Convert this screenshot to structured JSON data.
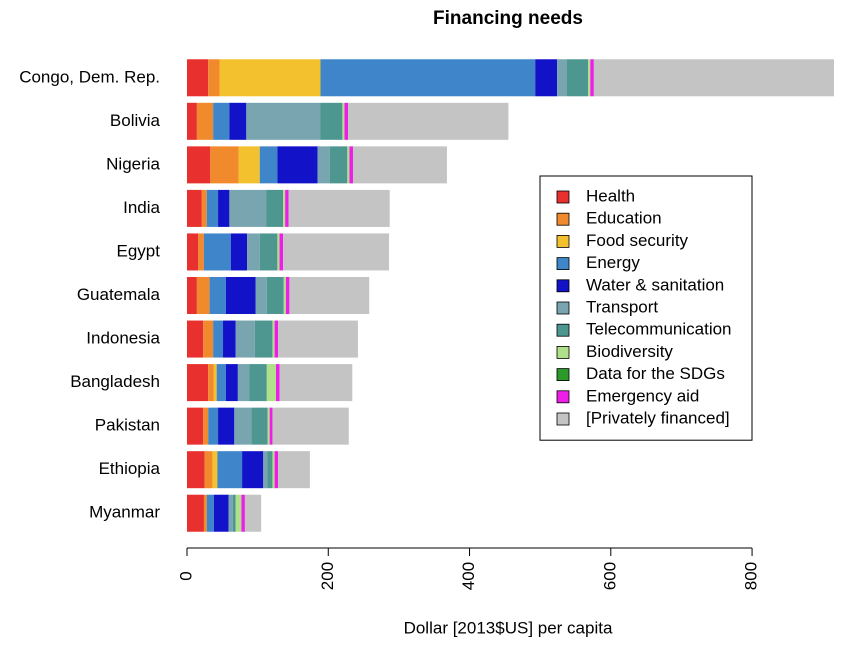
{
  "chart_data": {
    "type": "stacked-bar",
    "orientation": "horizontal",
    "title": "Financing needs",
    "x_label": "Dollar [2013$US] per capita",
    "categories": [
      "Congo, Dem. Rep.",
      "Bolivia",
      "Nigeria",
      "India",
      "Egypt",
      "Guatemala",
      "Indonesia",
      "Bangladesh",
      "Pakistan",
      "Ethiopia",
      "Myanmar"
    ],
    "xlim": [
      0,
      916
    ],
    "xticks": [
      0,
      200,
      400,
      600,
      800
    ],
    "legend": "right",
    "series": [
      {
        "name": "Health",
        "color": "#e8302e",
        "values": [
          30,
          14,
          33,
          21,
          16,
          14,
          23,
          30,
          23,
          25,
          24
        ]
      },
      {
        "name": "Education",
        "color": "#f08a2c",
        "values": [
          16,
          23,
          40,
          7,
          8,
          18,
          14,
          8,
          7,
          11,
          4
        ]
      },
      {
        "name": "Food security",
        "color": "#f4c12e",
        "values": [
          143,
          0,
          30,
          0,
          0,
          0,
          0,
          4,
          0,
          7,
          0
        ]
      },
      {
        "name": "Energy",
        "color": "#3f85c9",
        "values": [
          304,
          23,
          25,
          16,
          38,
          23,
          14,
          13,
          14,
          35,
          10
        ]
      },
      {
        "name": "Water & sanitation",
        "color": "#1212c9",
        "values": [
          31,
          24,
          57,
          16,
          23,
          42,
          18,
          17,
          23,
          30,
          21
        ]
      },
      {
        "name": "Transport",
        "color": "#78a5b0",
        "values": [
          14,
          105,
          17,
          52,
          18,
          16,
          27,
          16,
          24,
          6,
          6
        ]
      },
      {
        "name": "Telecommunication",
        "color": "#4e9791",
        "values": [
          30,
          31,
          25,
          24,
          25,
          24,
          25,
          25,
          23,
          7,
          4
        ]
      },
      {
        "name": "Biodiversity",
        "color": "#b0e08a",
        "values": [
          3,
          3,
          3,
          3,
          3,
          3,
          3,
          13,
          3,
          3,
          8
        ]
      },
      {
        "name": "Data for the SDGs",
        "color": "#2a9a2a",
        "values": [
          0,
          0,
          0,
          0,
          0,
          0,
          0,
          0,
          0,
          0,
          0
        ]
      },
      {
        "name": "Emergency aid",
        "color": "#ee1ee8",
        "values": [
          5,
          5,
          5,
          5,
          5,
          5,
          5,
          5,
          4,
          5,
          5
        ]
      },
      {
        "name": "[Privately financed]",
        "color": "#c4c4c4",
        "values": [
          340,
          227,
          133,
          143,
          150,
          113,
          113,
          103,
          108,
          45,
          23
        ]
      }
    ]
  }
}
